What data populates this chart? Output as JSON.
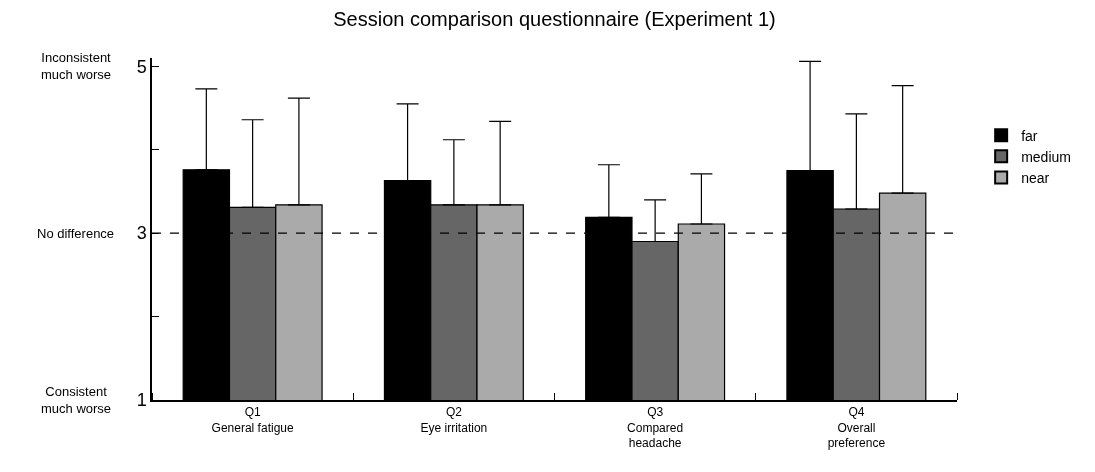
{
  "chart_data": {
    "type": "bar",
    "title": "Session comparison questionnaire (Experiment 1)",
    "categories": [
      "Q1\nGeneral fatigue",
      "Q2\nEye irritation",
      "Q3\nCompared\nheadache",
      "Q4\nOverall\npreference"
    ],
    "series": [
      {
        "name": "far",
        "color": "#000000",
        "values": [
          3.76,
          3.63,
          3.19,
          3.75
        ],
        "errors": [
          [
            3.76,
            4.73
          ],
          [
            3.63,
            4.55
          ],
          [
            3.19,
            3.82
          ],
          [
            3.75,
            5.06
          ]
        ]
      },
      {
        "name": "medium",
        "color": "#666666",
        "values": [
          3.31,
          3.34,
          2.9,
          3.29
        ],
        "errors": [
          [
            3.31,
            4.36
          ],
          [
            3.34,
            4.12
          ],
          [
            2.9,
            3.4
          ],
          [
            3.29,
            4.43
          ]
        ]
      },
      {
        "name": "near",
        "color": "#aaaaaa",
        "values": [
          3.34,
          3.34,
          3.11,
          3.48
        ],
        "errors": [
          [
            3.34,
            4.62
          ],
          [
            3.34,
            4.34
          ],
          [
            3.11,
            3.71
          ],
          [
            3.48,
            4.77
          ]
        ]
      }
    ],
    "ylim": [
      1,
      5.1
    ],
    "yticks": [
      1,
      {
        "value": 2,
        "label": null
      },
      3,
      {
        "value": 4,
        "label": null
      },
      5
    ],
    "annotations": [
      "Inconsistent\nmuch worse",
      "No difference",
      "Consistent\nmuch worse"
    ],
    "ref_lines": [
      {
        "axis": "y",
        "value": 3,
        "color": "#000000",
        "line_style": "dashed"
      }
    ],
    "legend": "right"
  }
}
